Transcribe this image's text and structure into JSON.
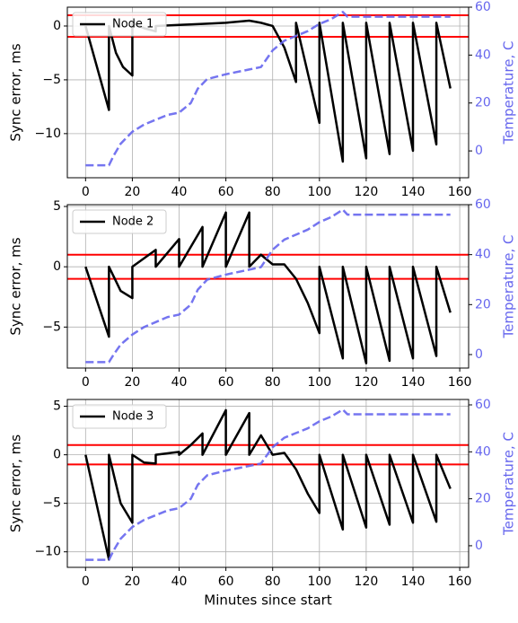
{
  "chart_data": [
    {
      "type": "line",
      "ylabel": "Sync error, ms",
      "y2label": "Temperature, C",
      "xlim": [
        -7.8,
        163.8
      ],
      "xticks": [
        0,
        20,
        40,
        60,
        80,
        100,
        120,
        140,
        160
      ],
      "ylim": [
        -14.1,
        1.75
      ],
      "yticks": [
        0,
        {
          "value": -5,
          "label": "−5"
        },
        {
          "value": -10,
          "label": "−10"
        }
      ],
      "y2lim": [
        -11.2,
        60
      ],
      "y2ticks": [
        0,
        20,
        40,
        60
      ],
      "grid": true,
      "legend": "upper left",
      "reference_lines": {
        "values": [
          1,
          -1
        ],
        "color": "#ff0000"
      },
      "series": [
        {
          "name": "Node 1",
          "color": "#000000",
          "x": [
            0,
            10,
            10,
            13,
            16,
            20,
            20,
            25,
            30,
            30,
            40,
            50,
            60,
            70,
            75,
            80,
            85,
            90,
            90,
            100,
            100,
            110,
            110,
            120,
            120,
            130,
            130,
            140,
            140,
            150,
            150,
            156
          ],
          "values": [
            0,
            -7.8,
            0,
            -2.5,
            -3.8,
            -4.6,
            0.3,
            -0.2,
            -0.5,
            0,
            0.1,
            0.2,
            0.3,
            0.5,
            0.3,
            0,
            -2,
            -5.2,
            0.3,
            -9,
            0.3,
            -12.6,
            0.3,
            -12.3,
            0.3,
            -11.9,
            0.3,
            -11.6,
            0.3,
            -11,
            0.3,
            -5.8
          ]
        },
        {
          "color": "#6666ee",
          "axis": "y2",
          "dashed": true,
          "x": [
            0,
            10,
            12,
            15,
            20,
            25,
            30,
            35,
            40,
            45,
            48,
            52,
            60,
            70,
            75,
            80,
            85,
            90,
            95,
            100,
            105,
            110,
            112,
            120,
            156
          ],
          "values": [
            -6,
            -6,
            -2,
            3,
            8,
            11,
            13,
            15,
            16,
            20,
            26,
            30,
            32,
            34,
            35,
            42,
            46,
            48,
            50,
            53,
            55,
            58,
            56,
            56,
            56
          ]
        }
      ]
    },
    {
      "type": "line",
      "ylabel": "Sync error, ms",
      "y2label": "Temperature, C",
      "xlim": [
        -7.8,
        163.8
      ],
      "xticks": [
        0,
        20,
        40,
        60,
        80,
        100,
        120,
        140,
        160
      ],
      "ylim": [
        -8.4,
        5.15
      ],
      "yticks": [
        5,
        0,
        {
          "value": -5,
          "label": "−5"
        }
      ],
      "y2lim": [
        -5.4,
        60
      ],
      "y2ticks": [
        0,
        20,
        40,
        60
      ],
      "grid": true,
      "legend": "upper left",
      "reference_lines": {
        "values": [
          1,
          -1
        ],
        "color": "#ff0000"
      },
      "series": [
        {
          "name": "Node 2",
          "color": "#000000",
          "x": [
            0,
            10,
            10,
            15,
            20,
            20,
            30,
            30,
            40,
            40,
            50,
            50,
            60,
            60,
            70,
            70,
            75,
            80,
            85,
            90,
            95,
            100,
            100,
            110,
            110,
            120,
            120,
            130,
            130,
            140,
            140,
            150,
            150,
            156
          ],
          "values": [
            0,
            -5.8,
            0,
            -2,
            -2.6,
            0,
            1.4,
            0,
            2.3,
            0,
            3.3,
            0,
            4.5,
            0,
            4.5,
            0,
            1,
            0.2,
            0.2,
            -1,
            -3,
            -5.5,
            0,
            -7.6,
            0,
            -8,
            0,
            -7.8,
            0,
            -7.6,
            0,
            -7.4,
            0,
            -3.8
          ]
        },
        {
          "color": "#6666ee",
          "axis": "y2",
          "dashed": true,
          "x": [
            0,
            10,
            12,
            15,
            20,
            25,
            30,
            35,
            40,
            45,
            48,
            52,
            60,
            70,
            75,
            80,
            85,
            90,
            95,
            100,
            105,
            110,
            112,
            120,
            156
          ],
          "values": [
            -3,
            -3,
            0,
            4,
            8,
            11,
            13,
            15,
            16,
            20,
            26,
            30,
            32,
            34,
            35,
            42,
            46,
            48,
            50,
            53,
            55,
            58,
            56,
            56,
            56
          ]
        }
      ]
    },
    {
      "type": "line",
      "ylabel": "Sync error, ms",
      "y2label": "Temperature, C",
      "xlabel": "Minutes since start",
      "xlim": [
        -7.8,
        163.8
      ],
      "xticks": [
        0,
        20,
        40,
        60,
        80,
        100,
        120,
        140,
        160
      ],
      "ylim": [
        -11.6,
        5.7
      ],
      "yticks": [
        5,
        0,
        {
          "value": -5,
          "label": "−5"
        },
        {
          "value": -10,
          "label": "−10"
        }
      ],
      "y2lim": [
        -9.2,
        62.3
      ],
      "y2ticks": [
        0,
        20,
        40,
        60
      ],
      "grid": true,
      "legend": "upper left",
      "reference_lines": {
        "values": [
          1,
          -1
        ],
        "color": "#ff0000"
      },
      "series": [
        {
          "name": "Node 3",
          "color": "#000000",
          "x": [
            0,
            10,
            10,
            15,
            20,
            20,
            25,
            30,
            30,
            40,
            40,
            45,
            50,
            50,
            60,
            60,
            70,
            70,
            75,
            80,
            85,
            90,
            95,
            100,
            100,
            110,
            110,
            120,
            120,
            130,
            130,
            140,
            140,
            150,
            150,
            156
          ],
          "values": [
            0,
            -10.8,
            0,
            -5,
            -7,
            0,
            -0.8,
            -0.9,
            0,
            0.3,
            0,
            1,
            2.2,
            0,
            4.6,
            0,
            4.3,
            0,
            2,
            0,
            0.2,
            -1.5,
            -4,
            -6,
            0,
            -7.7,
            0,
            -7.5,
            0,
            -7.2,
            0,
            -7,
            0,
            -6.9,
            0,
            -3.5
          ]
        },
        {
          "color": "#6666ee",
          "axis": "y2",
          "dashed": true,
          "x": [
            0,
            10,
            12,
            15,
            20,
            25,
            30,
            35,
            40,
            45,
            48,
            52,
            60,
            70,
            75,
            80,
            85,
            90,
            95,
            100,
            105,
            110,
            112,
            120,
            156
          ],
          "values": [
            -6,
            -6,
            -2,
            3,
            8,
            11,
            13,
            15,
            16,
            20,
            26,
            30,
            32,
            34,
            35,
            42,
            46,
            48,
            50,
            53,
            55,
            58,
            56,
            56,
            56
          ]
        }
      ]
    }
  ]
}
